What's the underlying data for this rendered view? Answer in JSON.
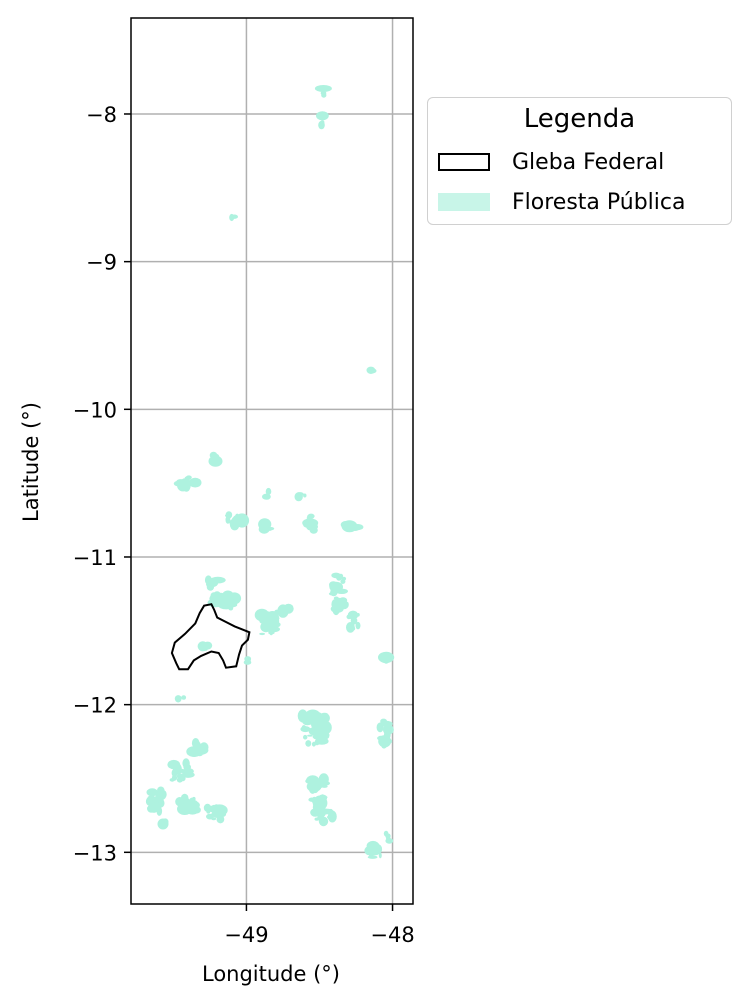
{
  "chart_data": {
    "type": "map",
    "xlabel": "Longitude (°)",
    "ylabel": "Latitude (°)",
    "xlim": [
      -49.79,
      -47.86
    ],
    "ylim": [
      -13.35,
      -7.35
    ],
    "x_ticks": [
      {
        "value": -49,
        "label": "−49"
      },
      {
        "value": -48,
        "label": "−48"
      }
    ],
    "y_ticks": [
      {
        "value": -8,
        "label": "−8"
      },
      {
        "value": -9,
        "label": "−9"
      },
      {
        "value": -10,
        "label": "−10"
      },
      {
        "value": -11,
        "label": "−11"
      },
      {
        "value": -12,
        "label": "−12"
      },
      {
        "value": -13,
        "label": "−13"
      }
    ],
    "grid": true,
    "legend": {
      "title": "Legenda",
      "placement": "outside-right-top",
      "entries": [
        {
          "label": "Gleba Federal",
          "style": "outline",
          "color": "#000000"
        },
        {
          "label": "Floresta Pública",
          "style": "fill",
          "color": "#c8f5e8"
        }
      ]
    },
    "gleba_federal_polygon": [
      [
        -49.48,
        -11.72
      ],
      [
        -49.51,
        -11.65
      ],
      [
        -49.49,
        -11.58
      ],
      [
        -49.42,
        -11.52
      ],
      [
        -49.35,
        -11.45
      ],
      [
        -49.32,
        -11.38
      ],
      [
        -49.29,
        -11.33
      ],
      [
        -49.24,
        -11.32
      ],
      [
        -49.22,
        -11.36
      ],
      [
        -49.2,
        -11.41
      ],
      [
        -49.14,
        -11.44
      ],
      [
        -49.08,
        -11.47
      ],
      [
        -49.03,
        -11.49
      ],
      [
        -48.98,
        -11.51
      ],
      [
        -48.99,
        -11.56
      ],
      [
        -49.03,
        -11.6
      ],
      [
        -49.05,
        -11.66
      ],
      [
        -49.07,
        -11.74
      ],
      [
        -49.14,
        -11.75
      ],
      [
        -49.16,
        -11.7
      ],
      [
        -49.19,
        -11.65
      ],
      [
        -49.24,
        -11.64
      ],
      [
        -49.31,
        -11.67
      ],
      [
        -49.36,
        -11.7
      ],
      [
        -49.4,
        -11.76
      ],
      [
        -49.46,
        -11.76
      ],
      [
        -49.48,
        -11.72
      ]
    ],
    "floresta_publica_patches": [
      [
        -48.48,
        -8.05,
        0.03,
        0.09
      ],
      [
        -48.47,
        -7.85,
        0.01,
        0.05
      ],
      [
        -49.09,
        -8.7,
        0.04,
        0.02
      ],
      [
        -48.14,
        -9.74,
        0.02,
        0.01
      ],
      [
        -49.24,
        -10.33,
        0.06,
        0.05
      ],
      [
        -49.4,
        -10.5,
        0.1,
        0.08
      ],
      [
        -49.08,
        -10.75,
        0.12,
        0.07
      ],
      [
        -48.87,
        -10.8,
        0.08,
        0.05
      ],
      [
        -48.85,
        -10.58,
        0.05,
        0.05
      ],
      [
        -48.62,
        -10.58,
        0.05,
        0.05
      ],
      [
        -48.55,
        -10.75,
        0.05,
        0.15
      ],
      [
        -48.28,
        -10.8,
        0.1,
        0.05
      ],
      [
        -48.37,
        -11.25,
        0.08,
        0.25
      ],
      [
        -48.27,
        -11.45,
        0.07,
        0.12
      ],
      [
        -49.15,
        -11.3,
        0.15,
        0.1
      ],
      [
        -48.85,
        -11.45,
        0.12,
        0.15
      ],
      [
        -48.73,
        -11.35,
        0.05,
        0.06
      ],
      [
        -49.23,
        -11.18,
        0.08,
        0.05
      ],
      [
        -49.44,
        -11.95,
        0.06,
        0.04
      ],
      [
        -48.54,
        -12.17,
        0.16,
        0.2
      ],
      [
        -48.06,
        -12.2,
        0.07,
        0.18
      ],
      [
        -48.5,
        -12.65,
        0.1,
        0.3
      ],
      [
        -48.42,
        -12.75,
        0.04,
        0.06
      ],
      [
        -48.12,
        -12.99,
        0.1,
        0.1
      ],
      [
        -48.03,
        -12.9,
        0.04,
        0.08
      ],
      [
        -49.45,
        -12.45,
        0.12,
        0.12
      ],
      [
        -49.32,
        -12.3,
        0.1,
        0.08
      ],
      [
        -49.62,
        -12.65,
        0.1,
        0.15
      ],
      [
        -49.4,
        -12.68,
        0.12,
        0.1
      ],
      [
        -49.22,
        -12.73,
        0.1,
        0.1
      ],
      [
        -49.55,
        -12.8,
        0.05,
        0.05
      ],
      [
        -48.05,
        -11.7,
        0.03,
        0.05
      ],
      [
        -48.98,
        -11.7,
        0.04,
        0.04
      ],
      [
        -49.28,
        -11.6,
        0.05,
        0.05
      ]
    ]
  }
}
